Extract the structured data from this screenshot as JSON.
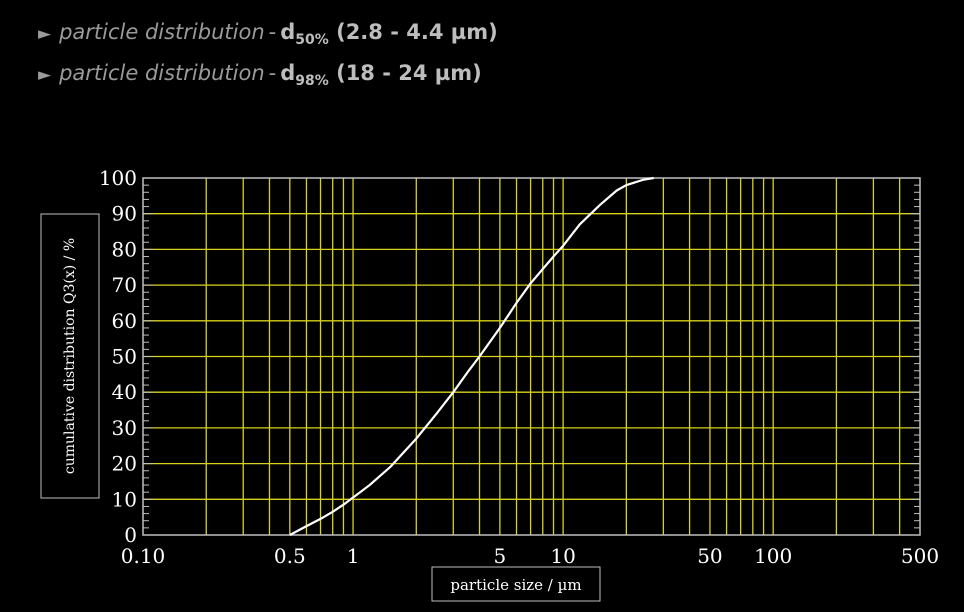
{
  "specs": [
    {
      "name": "particle distribution",
      "separator": "-",
      "symbol_base": "d",
      "symbol_sub": "50%",
      "range": "(2.8 - 4.4 µm)"
    },
    {
      "name": "particle distribution",
      "separator": "-",
      "symbol_base": "d",
      "symbol_sub": "98%",
      "range": "(18 - 24 µm)"
    }
  ],
  "chart_data": {
    "type": "line",
    "x_scale": "log",
    "xlabel": "particle size / µm",
    "ylabel": "cumulative distribution Q3(x) / %",
    "xlim": [
      0.1,
      500
    ],
    "ylim": [
      0,
      100
    ],
    "x_tick_labels": [
      "0.10",
      "0.5",
      "1",
      "5",
      "10",
      "50",
      "100",
      "500"
    ],
    "x_tick_values": [
      0.1,
      0.5,
      1,
      5,
      10,
      50,
      100,
      500
    ],
    "y_ticks": [
      0,
      10,
      20,
      30,
      40,
      50,
      60,
      70,
      80,
      90,
      100
    ],
    "grid": true,
    "x_grid_values": [
      0.2,
      0.3,
      0.4,
      0.5,
      0.6,
      0.7,
      0.8,
      0.9,
      1,
      2,
      3,
      4,
      5,
      6,
      7,
      8,
      9,
      10,
      20,
      30,
      40,
      50,
      60,
      70,
      80,
      90,
      100,
      200,
      300,
      400
    ],
    "colors": {
      "background": "#000000",
      "grid": "#d8d21a",
      "curve": "#ffffff",
      "frame": "#bfbfbf",
      "text": "#ffffff"
    },
    "series": [
      {
        "x": [
          0.5,
          0.6,
          0.7,
          0.8,
          0.9,
          1.0,
          1.2,
          1.5,
          2.0,
          2.5,
          3.0,
          3.5,
          4.0,
          5.0,
          6.0,
          7.0,
          8.0,
          9.0,
          10,
          12,
          15,
          18,
          20,
          24,
          27
        ],
        "y": [
          0,
          2.5,
          4.5,
          6.5,
          8.5,
          10.5,
          14,
          19,
          27,
          34,
          40,
          45.5,
          50,
          58,
          65,
          70.5,
          74.5,
          78,
          81,
          87,
          92.5,
          96.5,
          98,
          99.5,
          100
        ]
      }
    ]
  }
}
